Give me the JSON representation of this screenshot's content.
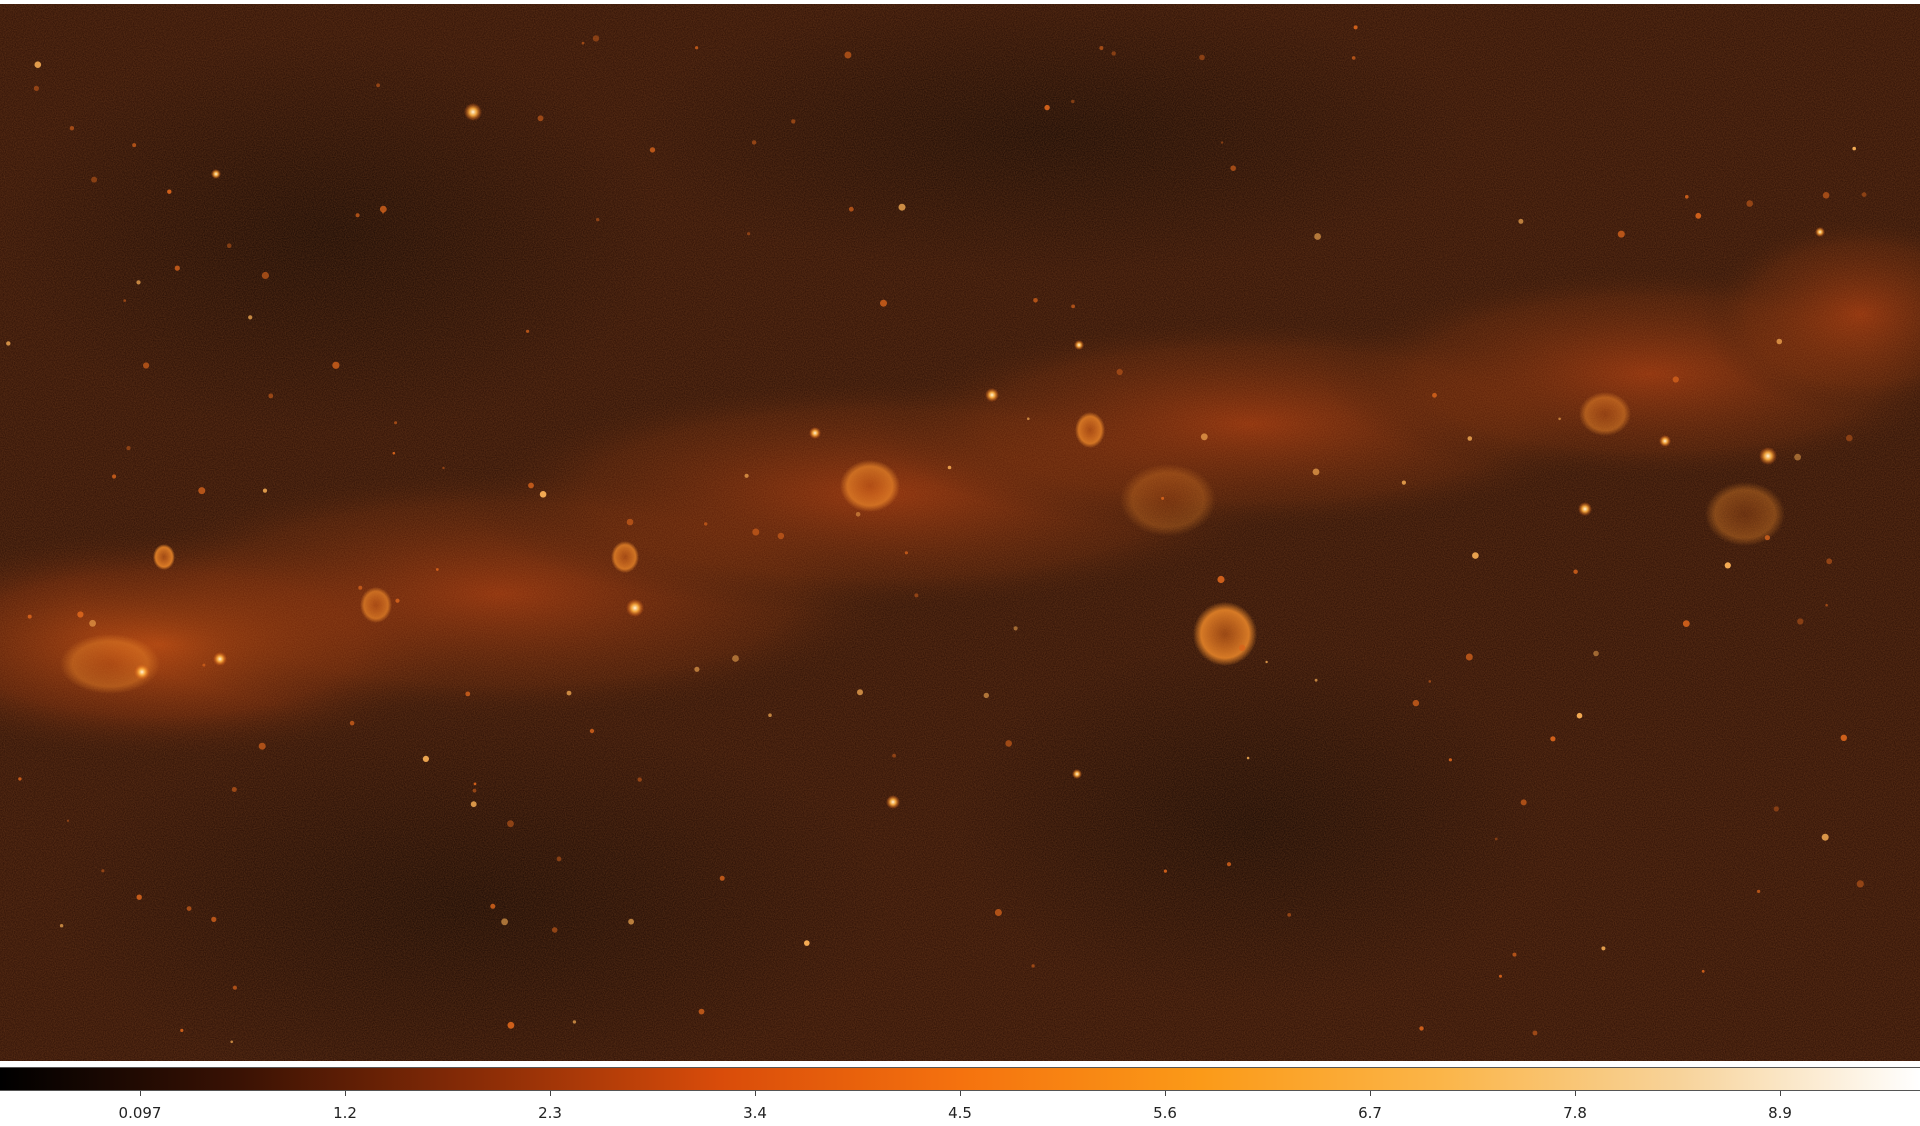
{
  "image": {
    "description_free": true
  },
  "colorbar": {
    "colormap": "afmhot",
    "stops": [
      "#000000",
      "#3a1204",
      "#8a2c06",
      "#d94c0a",
      "#f5720e",
      "#fb9a18",
      "#fbb548",
      "#f7d39a",
      "#ffffff"
    ],
    "ticks": [
      "0.097",
      "1.2",
      "2.3",
      "3.4",
      "4.5",
      "5.6",
      "6.7",
      "7.8",
      "8.9"
    ]
  },
  "colors": {
    "background_dark": "#1c0a04",
    "band_glow": "#c8410c",
    "bright_source": "#ffe8b0"
  }
}
